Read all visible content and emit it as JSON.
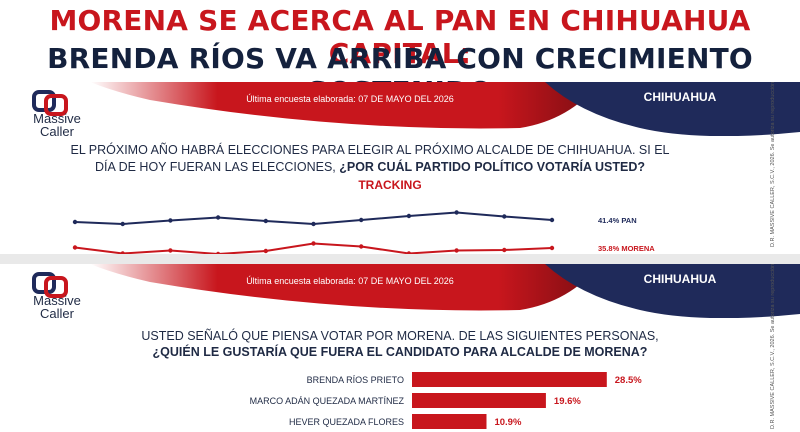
{
  "headline": {
    "line1": "MORENA SE ACERCA AL PAN EN CHIHUAHUA CAPITAL:",
    "line2": "BRENDA RÍOS VA ARRIBA CON CRECIMIENTO SOSTENIDO"
  },
  "brand": {
    "line1": "Massive",
    "line2": "Caller"
  },
  "banner": {
    "date_text": "Última encuesta elaborada: 07 DE MAYO DEL 2026",
    "city": "CHIHUAHUA"
  },
  "side_note": "D.R. MASSIVE CALLER, S.C.V., 2026. Se autoriza su reproducción citando la fuente.",
  "panel1": {
    "question_plain": "EL PRÓXIMO AÑO HABRÁ ELECCIONES PARA ELEGIR AL PRÓXIMO ALCALDE DE CHIHUAHUA. SI EL DÍA DE HOY FUERAN LAS ELECCIONES, ",
    "question_bold": "¿POR CUÁL PARTIDO POLÍTICO VOTARÍA USTED?",
    "subtitle": "TRACKING"
  },
  "panel2": {
    "question_line1": "USTED SEÑALÓ QUE PIENSA VOTAR POR MORENA. DE LAS SIGUIENTES PERSONAS,",
    "question_line2": "¿QUIÉN LE GUSTARÍA QUE FUERA EL CANDIDATO PARA ALCALDE DE MORENA?"
  },
  "colors": {
    "red": "#c8161d",
    "navy": "#1f2a5a"
  },
  "chart_data": [
    {
      "type": "line",
      "title": "TRACKING",
      "x": [
        1,
        2,
        3,
        4,
        5,
        6,
        7,
        8,
        9,
        10,
        11
      ],
      "series": [
        {
          "name": "PAN",
          "label": "41.4% PAN",
          "color": "#1f2a5a",
          "values": [
            41.0,
            40.6,
            41.3,
            41.9,
            41.2,
            40.6,
            41.4,
            42.2,
            42.9,
            42.1,
            41.4
          ]
        },
        {
          "name": "MORENA",
          "label": "35.8% MORENA",
          "color": "#c8161d",
          "values": [
            35.9,
            34.7,
            35.3,
            34.6,
            35.2,
            36.7,
            36.1,
            34.7,
            35.3,
            35.4,
            35.8
          ]
        }
      ],
      "ylim": [
        33,
        45
      ],
      "xlabel": "",
      "ylabel": ""
    },
    {
      "type": "bar",
      "orientation": "horizontal",
      "categories": [
        "BRENDA RÍOS PRIETO",
        "MARCO ADÁN QUEZADA MARTÍNEZ",
        "HEVER QUEZADA FLORES"
      ],
      "values": [
        28.5,
        19.6,
        10.9
      ],
      "labels": [
        "28.5%",
        "19.6%",
        "10.9%"
      ],
      "xlim": [
        0,
        60
      ],
      "xlabel": "",
      "ylabel": ""
    }
  ]
}
